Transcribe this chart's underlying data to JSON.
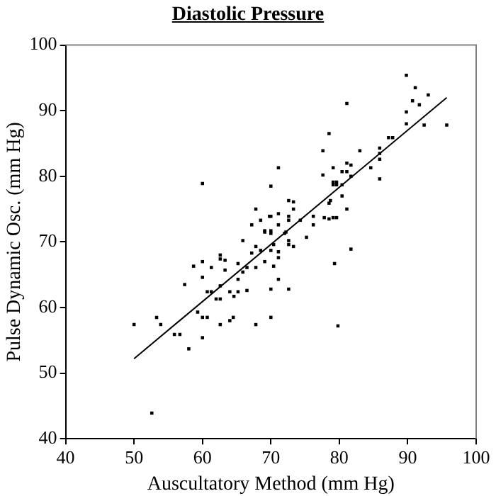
{
  "chart_data": {
    "type": "scatter",
    "title": "Diastolic Pressure",
    "xlabel": "Auscultatory Method (mm Hg)",
    "ylabel": "Pulse Dynamic Osc. (mm Hg)",
    "xlim": [
      40,
      100
    ],
    "xticks": [
      40,
      50,
      60,
      70,
      80,
      90,
      100
    ],
    "ylim": [
      40,
      100
    ],
    "yticks": [
      40,
      50,
      60,
      70,
      80,
      90,
      100
    ],
    "grid": false,
    "legend": false,
    "marker": "square",
    "series": [
      {
        "color": "#000000",
        "x": [
          50,
          52.6,
          53.3,
          53.9,
          55.9,
          56.7,
          58,
          57.4,
          58.7,
          59.3,
          60,
          60,
          60,
          60,
          60.7,
          61.3,
          60.7,
          61.3,
          62,
          62.6,
          62.6,
          62.6,
          63.3,
          63.3,
          62.6,
          62.6,
          64,
          64,
          64.5,
          64.6,
          65.2,
          65.2,
          65.2,
          65.9,
          65.9,
          66.5,
          66.5,
          67.2,
          67.8,
          67.8,
          67.8,
          68.5,
          69.1,
          69.1,
          70,
          70,
          70,
          70,
          70.4,
          60,
          70,
          67.8,
          70,
          68.5,
          67.2,
          69.1,
          70,
          89.8,
          91.1,
          90.7,
          91.7,
          93,
          89.8,
          89.8,
          92.4,
          95.7,
          81.1,
          78.5,
          87.2,
          87.8,
          83,
          85.9,
          85.9,
          77.6,
          84.6,
          85.9,
          85.9,
          79.1,
          81.1,
          81.7,
          80.4,
          81.1,
          81.7,
          77.6,
          79.1,
          79.6,
          79.1,
          79.6,
          80.4,
          71.1,
          72.6,
          73.3,
          73.3,
          78.7,
          78.5,
          80.4,
          81.1,
          71.1,
          72.6,
          72.6,
          74.3,
          76.2,
          76.2,
          77.8,
          78.5,
          79.1,
          79.6,
          69.8,
          71.1,
          72.2,
          72,
          75.2,
          72.6,
          72.6,
          73.3,
          70.4,
          71.1,
          71.1,
          71.1,
          72.6,
          79.3,
          81.7,
          79.8
        ],
        "values": [
          57.4,
          43.9,
          58.5,
          57.4,
          55.9,
          55.9,
          53.7,
          63.5,
          66.3,
          59.3,
          67,
          64.6,
          58.5,
          55.4,
          58.5,
          66.1,
          62.4,
          62.4,
          61.3,
          61.3,
          68,
          67.4,
          67.2,
          65.7,
          63.3,
          57.4,
          62.4,
          58,
          58.5,
          61.7,
          66.7,
          64.3,
          62.4,
          70.2,
          65.4,
          62.6,
          66.1,
          68.3,
          69.3,
          66.1,
          57.4,
          68.7,
          67,
          71.5,
          71.3,
          68.7,
          62.8,
          58.5,
          66.3,
          78.9,
          78.5,
          75,
          73.9,
          73.3,
          72.6,
          71.7,
          71.7,
          95.4,
          93.5,
          91.5,
          90.9,
          92.4,
          89.8,
          88,
          87.8,
          87.8,
          91.1,
          86.5,
          85.9,
          85.9,
          83.9,
          84.3,
          83.5,
          83.9,
          81.3,
          82.6,
          79.6,
          81.3,
          82,
          81.7,
          80.7,
          80.7,
          80,
          80.2,
          79.1,
          79.1,
          78.7,
          78.7,
          78.7,
          81.3,
          76.3,
          76.1,
          75,
          76.3,
          75.9,
          77,
          75,
          74.3,
          73.9,
          73.3,
          73.3,
          73.9,
          72.6,
          73.7,
          73.5,
          73.7,
          73.7,
          73.9,
          72.6,
          71.5,
          71.3,
          70.7,
          70.2,
          69.6,
          69.3,
          69.6,
          68.5,
          67.6,
          64.3,
          62.8,
          66.7,
          68.9,
          57.2
        ]
      },
      {
        "type": "line",
        "marker": "none",
        "color": "#000000",
        "x": [
          50,
          95.7
        ],
        "values": [
          52.2,
          92
        ]
      }
    ]
  }
}
